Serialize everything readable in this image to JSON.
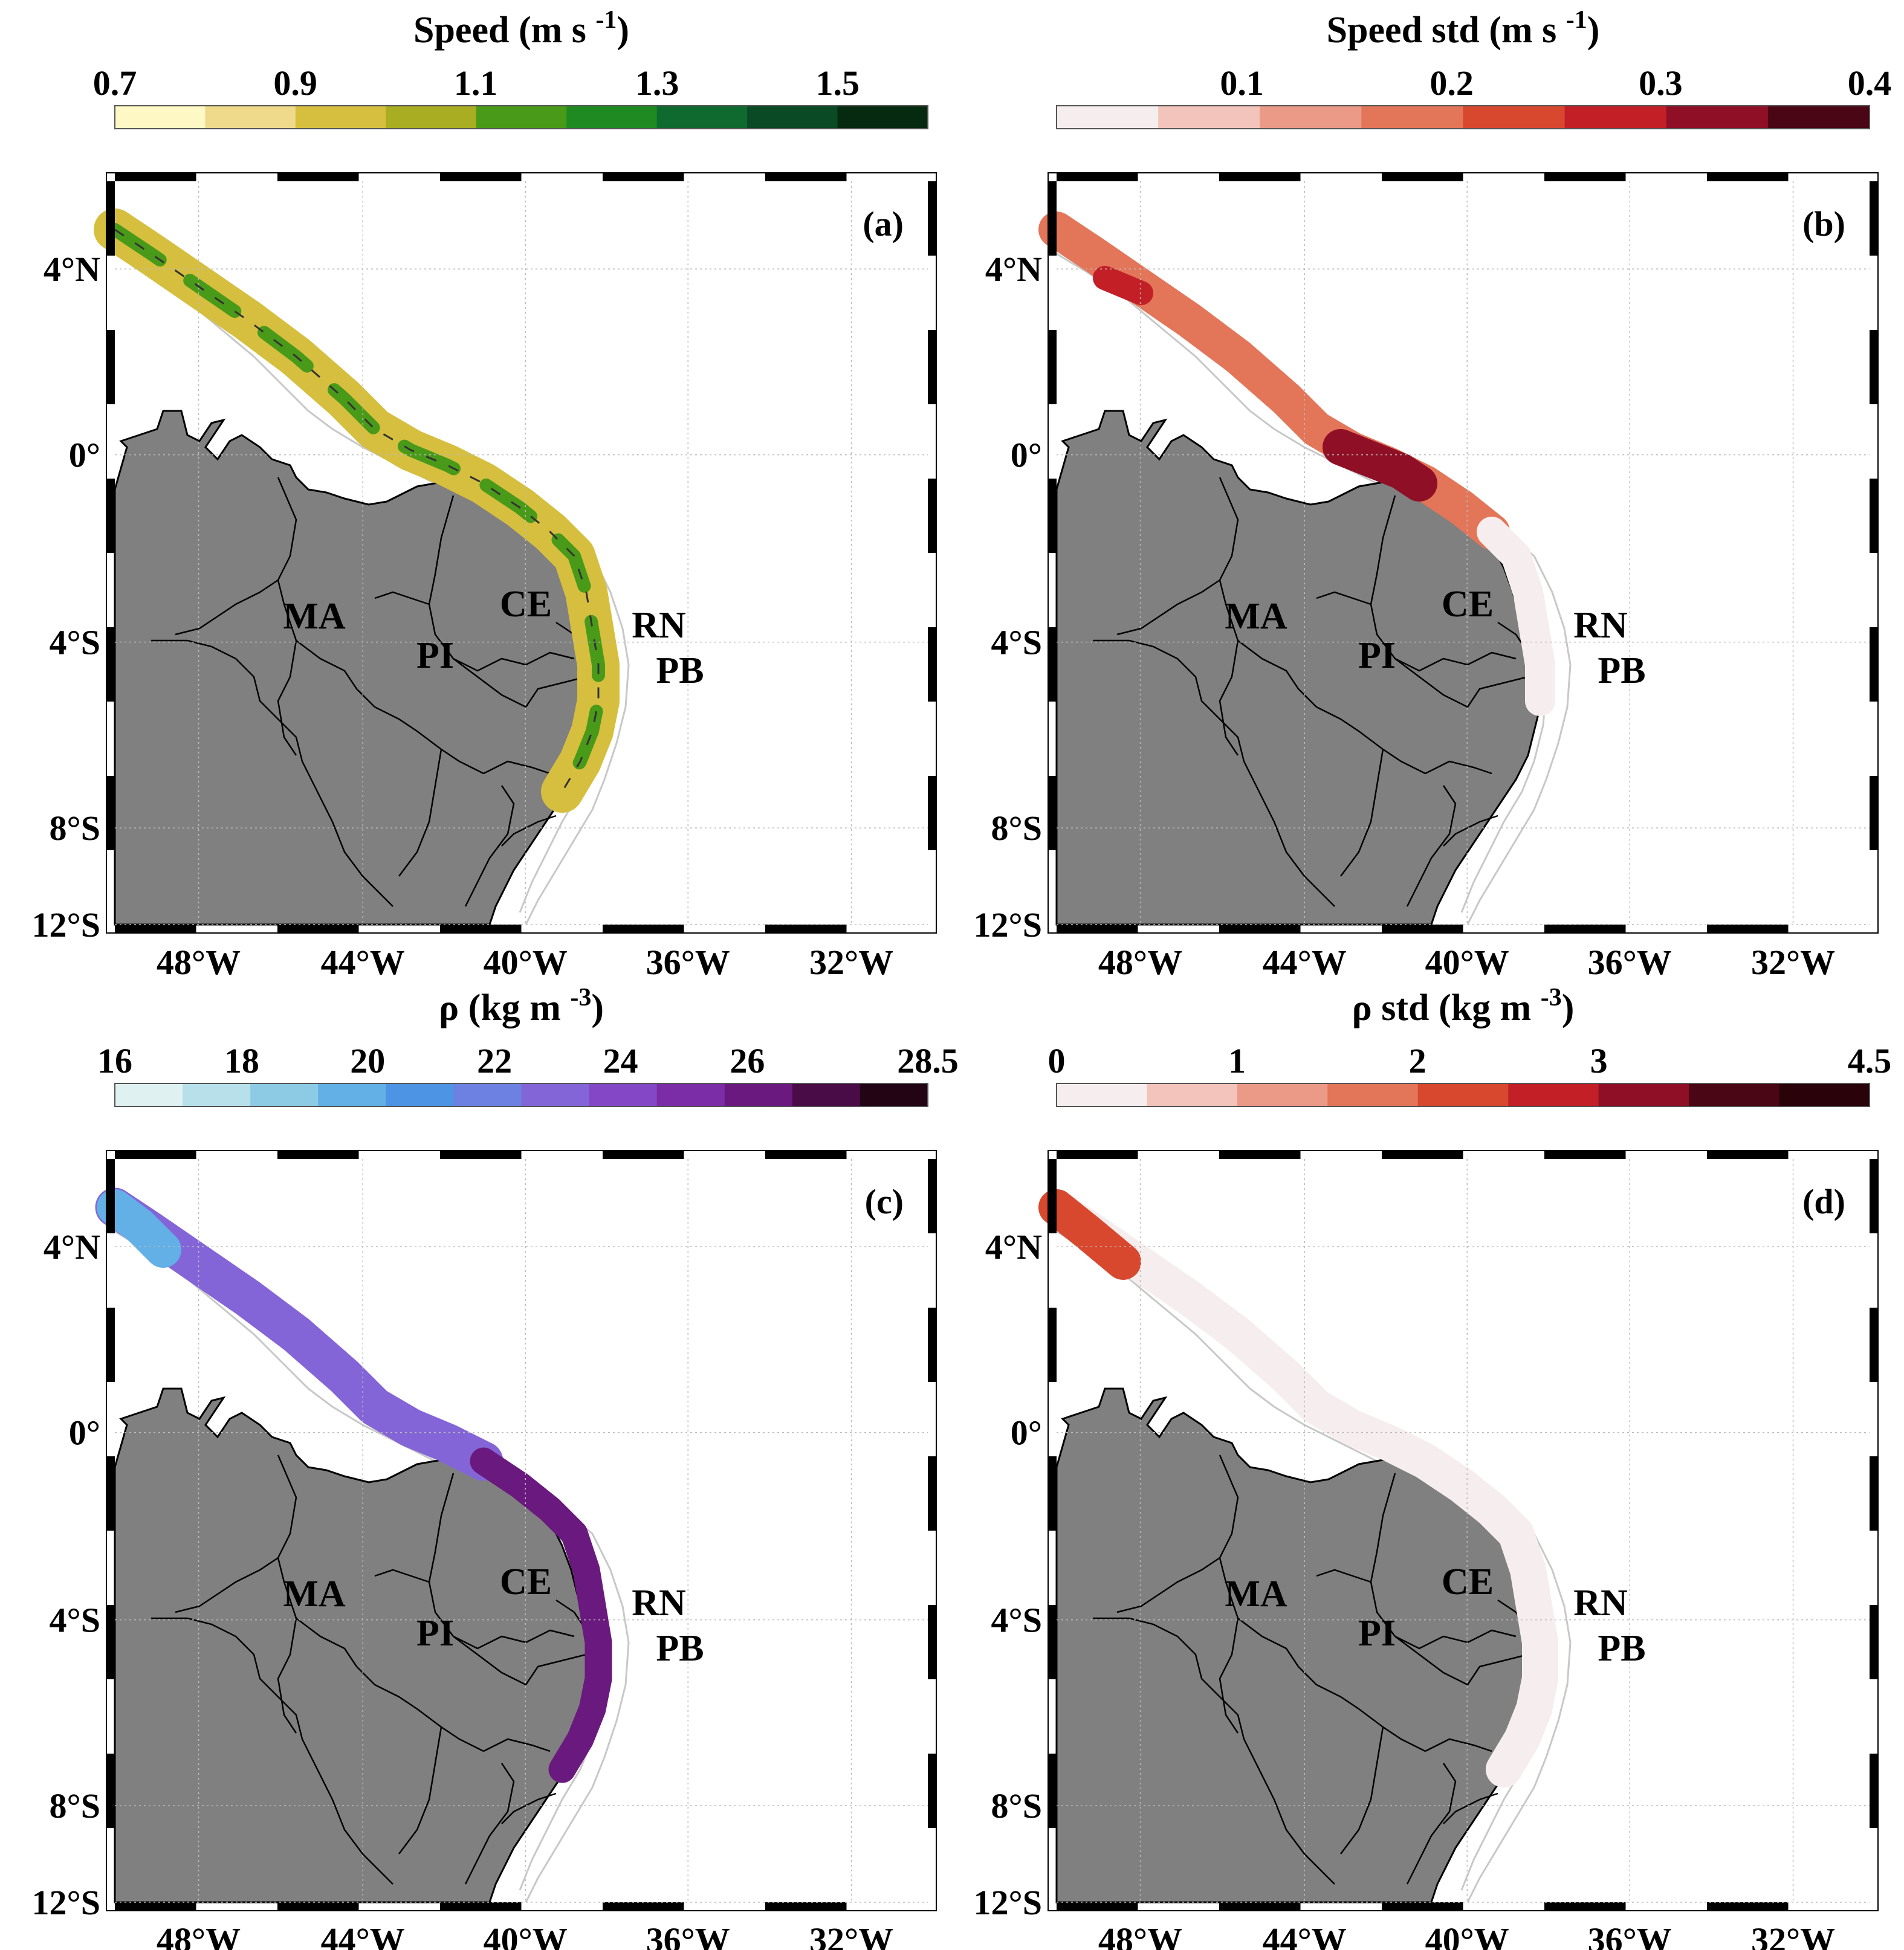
{
  "figure": {
    "panels": [
      {
        "id": "a",
        "panel_label": "(a)",
        "colorbar": {
          "title": "Speed (m s",
          "title_sup": "-1",
          "title_end": ")",
          "ticks": [
            "0.7",
            "0.9",
            "1.1",
            "1.3",
            "1.5"
          ],
          "colors": [
            "#fdf8c4",
            "#efd98a",
            "#d6bf3f",
            "#a9ad21",
            "#4a9a1a",
            "#1f8a22",
            "#0f6a30",
            "#0a4a24",
            "#062a10"
          ]
        },
        "field": "speed"
      },
      {
        "id": "b",
        "panel_label": "(b)",
        "colorbar": {
          "title": "Speed std (m s",
          "title_sup": "-1",
          "title_end": ")",
          "ticks": [
            "0.1",
            "0.2",
            "0.3",
            "0.4"
          ],
          "colors": [
            "#f6eeee",
            "#f2c4bb",
            "#eb9a87",
            "#e37559",
            "#d8482e",
            "#c21f26",
            "#8f0f26",
            "#4a0614"
          ]
        },
        "field": "speed_std"
      },
      {
        "id": "c",
        "panel_label": "(c)",
        "colorbar": {
          "title": "ρ (kg m",
          "title_sup": "-3",
          "title_end": ")",
          "ticks": [
            "16",
            "18",
            "20",
            "22",
            "24",
            "26",
            "28.5"
          ],
          "colors": [
            "#dff1f0",
            "#b7e0ea",
            "#8ccbe3",
            "#62b0e6",
            "#4d94e4",
            "#6c81e1",
            "#8465d8",
            "#8448c6",
            "#7a2da6",
            "#6a1a7e",
            "#4a0c46",
            "#220414"
          ]
        },
        "field": "density"
      },
      {
        "id": "d",
        "panel_label": "(d)",
        "colorbar": {
          "title": "ρ std (kg m",
          "title_sup": "-3",
          "title_end": ")",
          "ticks": [
            "0",
            "1",
            "2",
            "3",
            "4.5"
          ],
          "colors": [
            "#f6eeee",
            "#f2c4bb",
            "#eb9a87",
            "#e37559",
            "#d8482e",
            "#c21f26",
            "#8f0f26",
            "#4a0614",
            "#2a020a"
          ]
        },
        "field": "density_std"
      }
    ],
    "lat_ticks": [
      "4°N",
      "0°",
      "4°S",
      "8°S",
      "12°S"
    ],
    "lon_ticks": [
      "48°W",
      "44°W",
      "40°W",
      "36°W",
      "32°W"
    ],
    "state_labels": [
      "MA",
      "PI",
      "CE",
      "RN",
      "PB"
    ],
    "colors": {
      "land": "#808080",
      "ocean": "#ffffff",
      "border": "#000000",
      "isobath": "#c8c8c8"
    }
  }
}
